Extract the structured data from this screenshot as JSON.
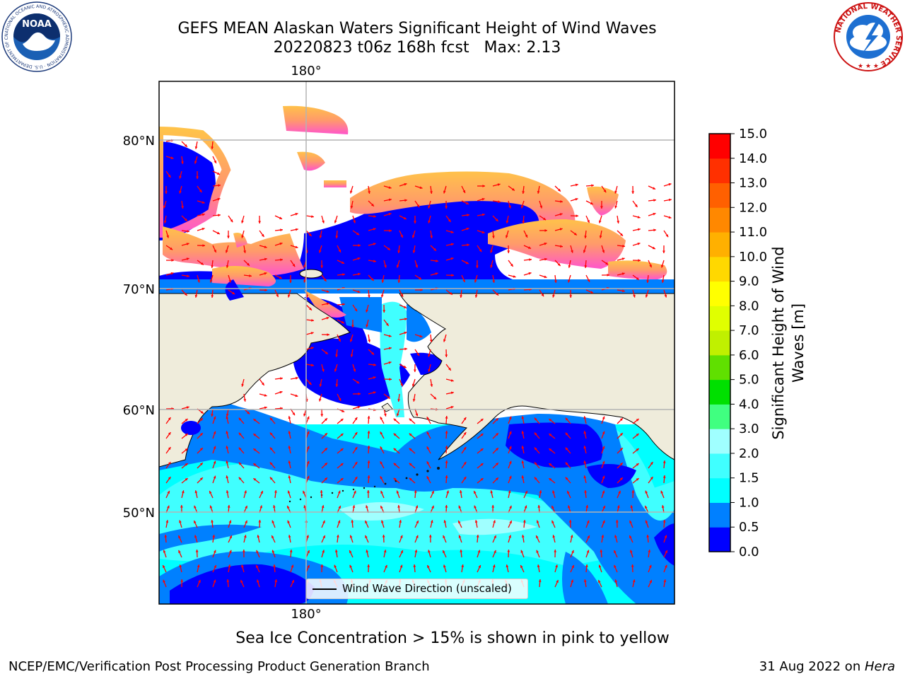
{
  "title": {
    "line1": "GEFS MEAN Alaskan Waters Significant Height of Wind Waves",
    "line2": "20220823 t06z 168h fcst   Max: 2.13"
  },
  "logos": {
    "left": {
      "icon": "noaa-logo",
      "text": "NOAA",
      "ring_text": "NATIONAL OCEANIC AND ATMOSPHERIC ADMINISTRATION · U.S. DEPARTMENT OF COMMERCE"
    },
    "right": {
      "icon": "nws-logo",
      "ring_text": "NATIONAL WEATHER SERVICE"
    }
  },
  "map": {
    "lon_labels": {
      "top": "180°",
      "bottom": "180°"
    },
    "lat_labels": [
      "80°N",
      "70°N",
      "60°N",
      "50°N"
    ],
    "colors": {
      "land": "#efecdb",
      "no_data": "#ffffff",
      "arrow": "#ff0000",
      "grid": "#b3b3b3"
    },
    "legend_label": "Wind Wave Direction (unscaled)"
  },
  "colorbar": {
    "title_line1": "Significant Height of Wind",
    "title_line2": "Waves [m]",
    "ticks": [
      "0.0",
      "0.5",
      "1.0",
      "1.5",
      "2.0",
      "3.0",
      "4.0",
      "5.0",
      "6.0",
      "7.0",
      "8.0",
      "9.0",
      "10.0",
      "11.0",
      "12.0",
      "13.0",
      "14.0",
      "15.0"
    ],
    "colors": [
      "#0000ff",
      "#0080ff",
      "#00ffff",
      "#40ffff",
      "#a0ffff",
      "#40ff80",
      "#00e000",
      "#60e000",
      "#c0f000",
      "#e0ff00",
      "#ffff00",
      "#ffd800",
      "#ffb000",
      "#ff8800",
      "#ff6000",
      "#ff3000",
      "#ff0000"
    ]
  },
  "chart_data": {
    "type": "heatmap",
    "title": "GEFS MEAN Alaskan Waters Significant Height of Wind Waves",
    "subtitle": "20220823 t06z 168h fcst   Max: 2.13",
    "colorbar_label": "Significant Height of Wind Waves [m]",
    "colorbar_range": [
      0.0,
      15.0
    ],
    "colorbar_levels": [
      0.0,
      0.5,
      1.0,
      1.5,
      2.0,
      3.0,
      4.0,
      5.0,
      6.0,
      7.0,
      8.0,
      9.0,
      10.0,
      11.0,
      12.0,
      13.0,
      14.0,
      15.0
    ],
    "max_value": 2.13,
    "gridlines_lat": [
      50,
      60,
      70,
      80
    ],
    "gridlines_lon": [
      180
    ],
    "grid": true,
    "legend": "bottom-center"
  },
  "caption": "Sea Ice Concentration > 15% is shown in pink to yellow",
  "footer": {
    "left": "NCEP/EMC/Verification Post Processing Product Generation Branch",
    "right_date": "31 Aug 2022 on ",
    "right_machine": "Hera"
  }
}
